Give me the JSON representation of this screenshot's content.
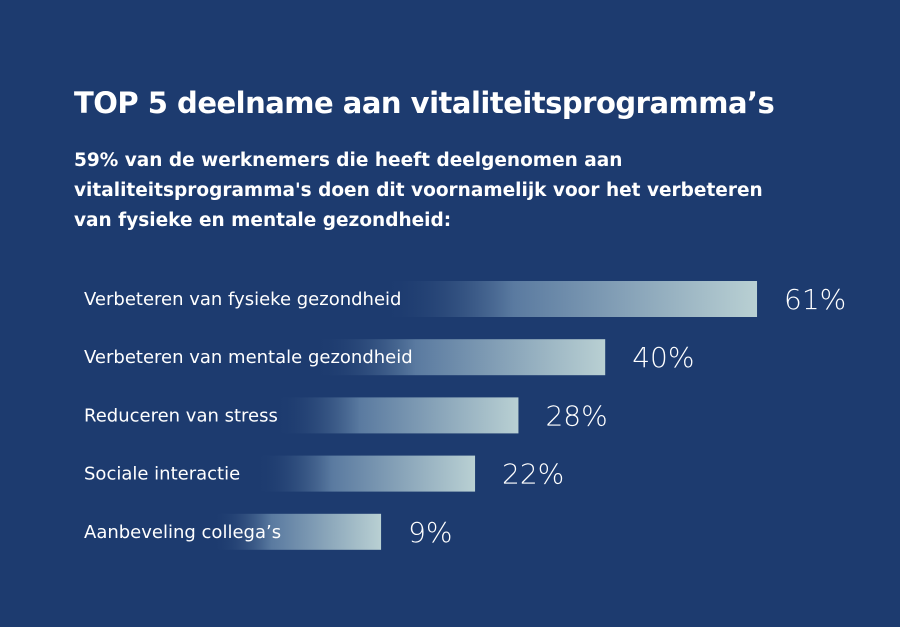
{
  "chart_data": {
    "type": "bar",
    "orientation": "horizontal",
    "title": "TOP 5 deelname aan vitaliteitsprogramma’s",
    "subtitle": "59% van de werknemers die heeft deelgenomen aan vitaliteitsprogramma's doen dit voornamelijk voor het verbeteren van fysieke en mentale gezondheid:",
    "categories": [
      "Verbeteren van fysieke gezondheid",
      "Verbeteren van mentale gezondheid",
      "Reduceren van stress",
      "Sociale interactie",
      "Aanbeveling collega’s"
    ],
    "values": [
      61,
      40,
      28,
      22,
      9
    ],
    "value_labels": [
      "61%",
      "40%",
      "28%",
      "22%",
      "9%"
    ],
    "unit": "%",
    "grid": false,
    "colors": {
      "background": "#1d3b6f",
      "bar_end": "#b9d0d3",
      "bar_mid": "#5a7aa0",
      "text": "#ffffff"
    }
  }
}
